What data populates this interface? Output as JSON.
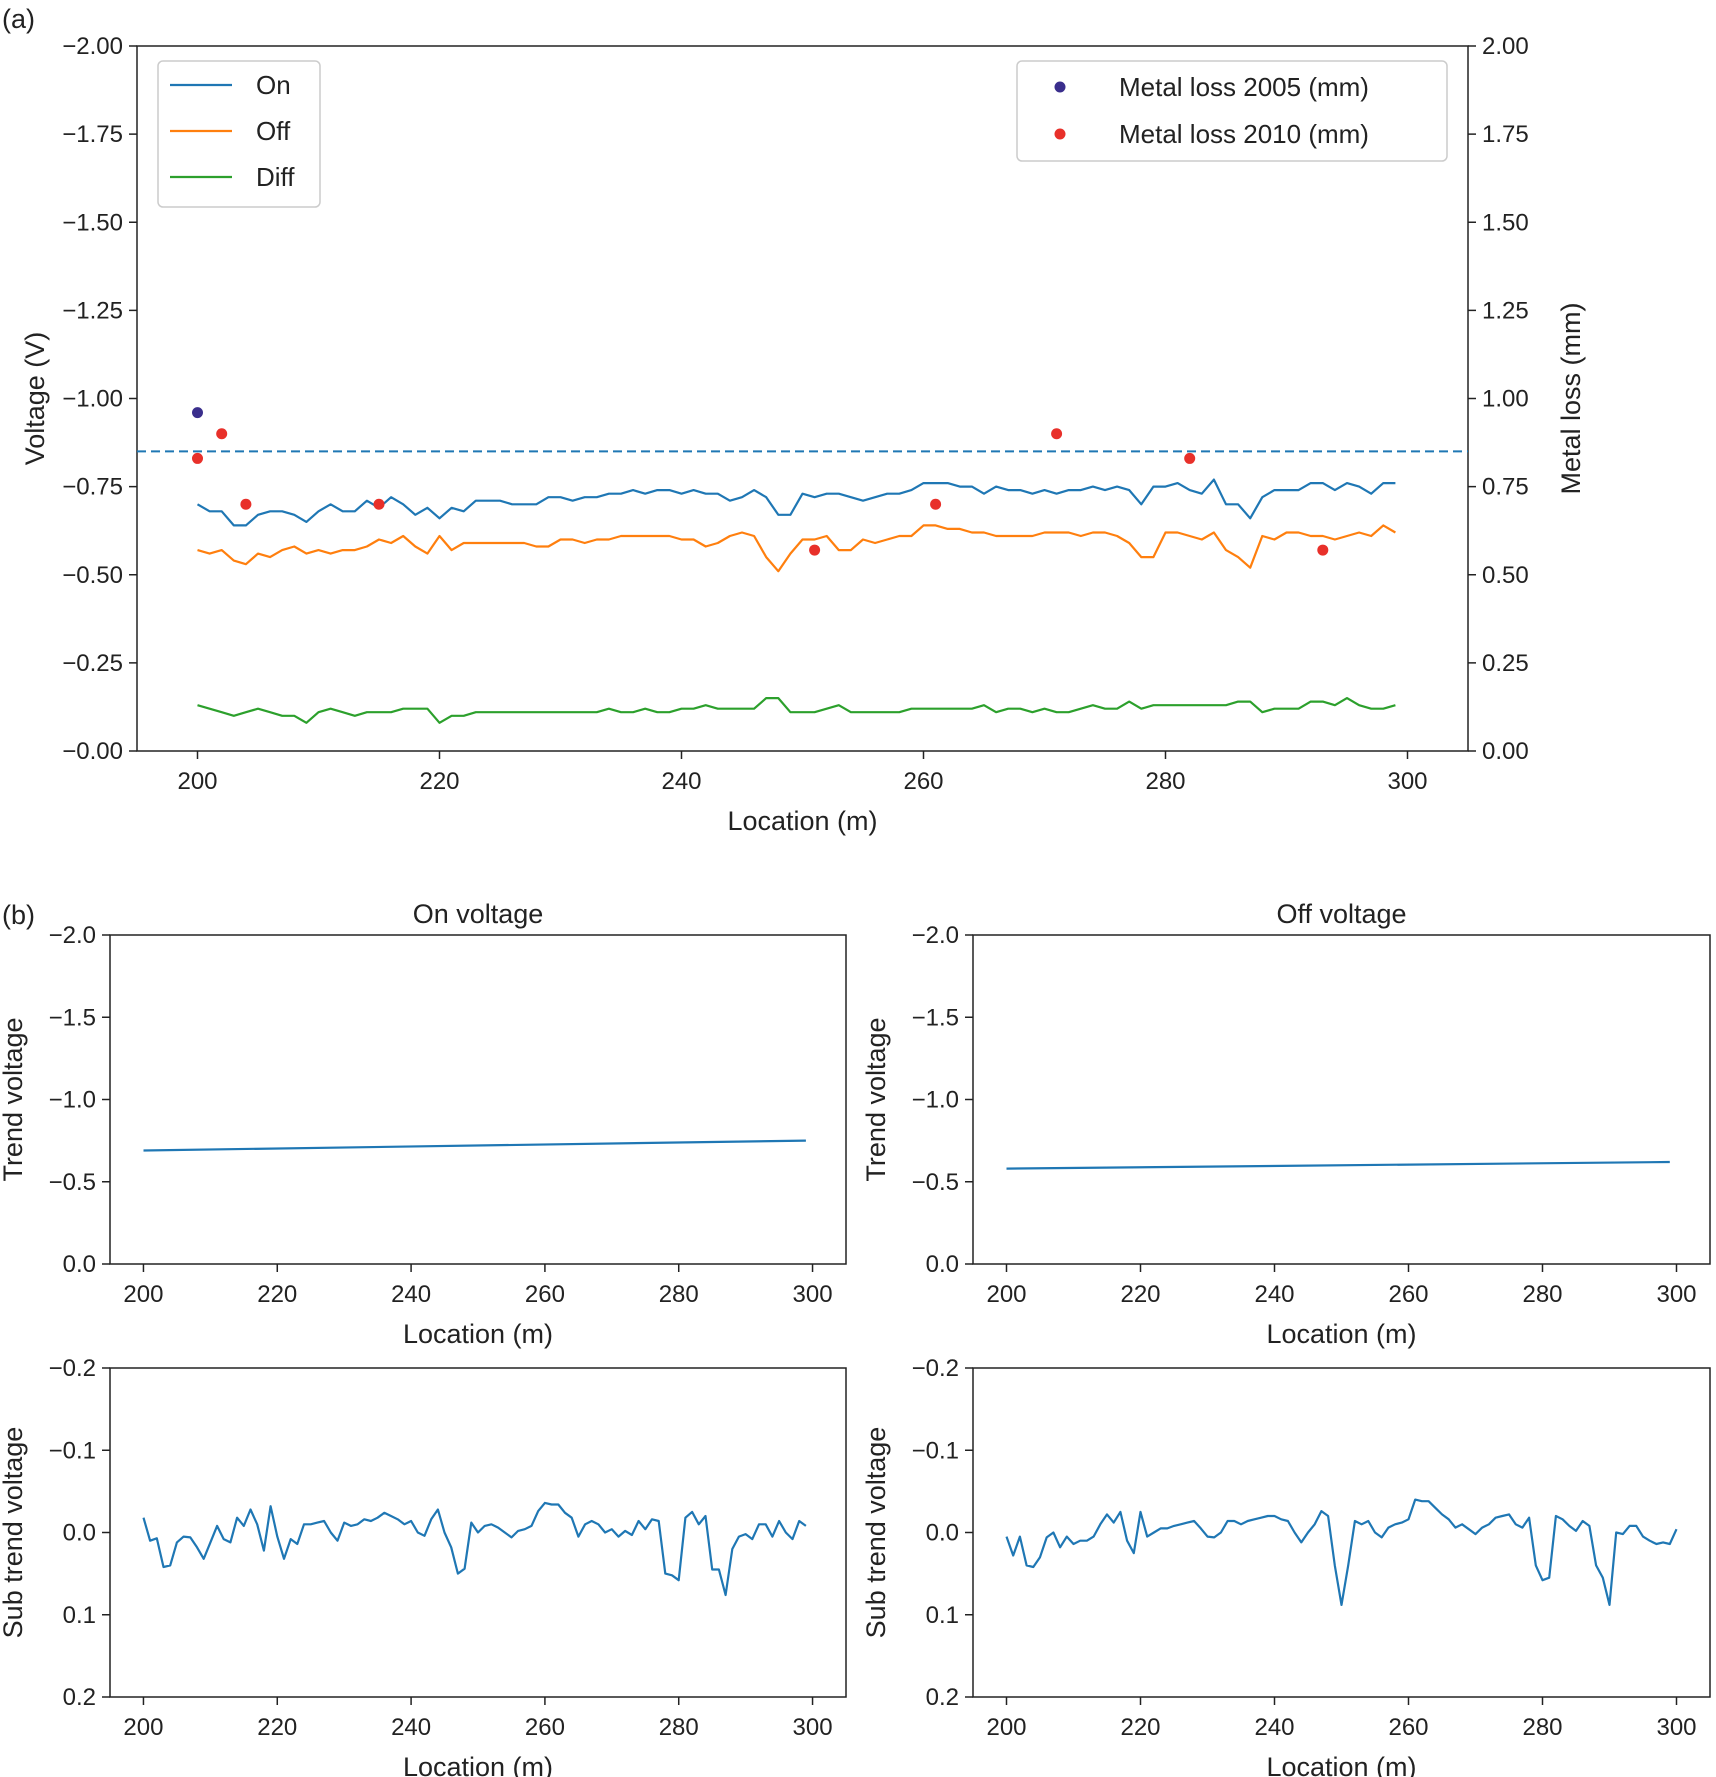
{
  "chart_data": [
    {
      "id": "a",
      "panel_label": "(a)",
      "type": "line",
      "title": "",
      "xlabel": "Location (m)",
      "ylabel": "Voltage (V)",
      "ylabel_right": "Metal loss (mm)",
      "xlim": [
        195,
        305
      ],
      "ylim": [
        -2.0,
        0.0
      ],
      "ylim_right": [
        2.0,
        0.0
      ],
      "x_ticks": [
        200,
        220,
        240,
        260,
        280,
        300
      ],
      "y_ticks": [
        -2.0,
        -1.75,
        -1.5,
        -1.25,
        -1.0,
        -0.75,
        -0.5,
        -0.25,
        0.0
      ],
      "y_tick_labels": [
        "−2.00",
        "−1.75",
        "−1.50",
        "−1.25",
        "−1.00",
        "−0.75",
        "−0.50",
        "−0.25",
        "−0.00"
      ],
      "y_ticks_right": [
        2.0,
        1.75,
        1.5,
        1.25,
        1.0,
        0.75,
        0.5,
        0.25,
        0.0
      ],
      "y_tick_labels_right": [
        "2.00",
        "1.75",
        "1.50",
        "1.25",
        "1.00",
        "0.75",
        "0.50",
        "0.25",
        "0.00"
      ],
      "threshold_line": -0.85,
      "x_start": 200,
      "x_step": 1,
      "series": [
        {
          "name": "On",
          "color": "#1f77b4",
          "values": [
            -0.7,
            -0.68,
            -0.68,
            -0.64,
            -0.64,
            -0.67,
            -0.68,
            -0.68,
            -0.67,
            -0.65,
            -0.68,
            -0.7,
            -0.68,
            -0.68,
            -0.71,
            -0.69,
            -0.72,
            -0.7,
            -0.67,
            -0.69,
            -0.66,
            -0.69,
            -0.68,
            -0.71,
            -0.71,
            -0.71,
            -0.7,
            -0.7,
            -0.7,
            -0.72,
            -0.72,
            -0.71,
            -0.72,
            -0.72,
            -0.73,
            -0.73,
            -0.74,
            -0.73,
            -0.74,
            -0.74,
            -0.73,
            -0.74,
            -0.73,
            -0.73,
            -0.71,
            -0.72,
            -0.74,
            -0.72,
            -0.67,
            -0.67,
            -0.73,
            -0.72,
            -0.73,
            -0.73,
            -0.72,
            -0.71,
            -0.72,
            -0.73,
            -0.73,
            -0.74,
            -0.76,
            -0.76,
            -0.76,
            -0.75,
            -0.75,
            -0.73,
            -0.75,
            -0.74,
            -0.74,
            -0.73,
            -0.74,
            -0.73,
            -0.74,
            -0.74,
            -0.75,
            -0.74,
            -0.75,
            -0.74,
            -0.7,
            -0.75,
            -0.75,
            -0.76,
            -0.74,
            -0.73,
            -0.77,
            -0.7,
            -0.7,
            -0.66,
            -0.72,
            -0.74,
            -0.74,
            -0.74,
            -0.76,
            -0.76,
            -0.74,
            -0.76,
            -0.75,
            -0.73,
            -0.76,
            -0.76
          ]
        },
        {
          "name": "Off",
          "color": "#ff7f0e",
          "values": [
            -0.57,
            -0.56,
            -0.57,
            -0.54,
            -0.53,
            -0.56,
            -0.55,
            -0.57,
            -0.58,
            -0.56,
            -0.57,
            -0.56,
            -0.57,
            -0.57,
            -0.58,
            -0.6,
            -0.59,
            -0.61,
            -0.58,
            -0.56,
            -0.61,
            -0.57,
            -0.59,
            -0.59,
            -0.59,
            -0.59,
            -0.59,
            -0.59,
            -0.58,
            -0.58,
            -0.6,
            -0.6,
            -0.59,
            -0.6,
            -0.6,
            -0.61,
            -0.61,
            -0.61,
            -0.61,
            -0.61,
            -0.6,
            -0.6,
            -0.58,
            -0.59,
            -0.61,
            -0.62,
            -0.61,
            -0.55,
            -0.51,
            -0.56,
            -0.6,
            -0.6,
            -0.61,
            -0.57,
            -0.57,
            -0.6,
            -0.59,
            -0.6,
            -0.61,
            -0.61,
            -0.64,
            -0.64,
            -0.63,
            -0.63,
            -0.62,
            -0.62,
            -0.61,
            -0.61,
            -0.61,
            -0.61,
            -0.62,
            -0.62,
            -0.62,
            -0.61,
            -0.62,
            -0.62,
            -0.61,
            -0.59,
            -0.55,
            -0.55,
            -0.62,
            -0.62,
            -0.61,
            -0.6,
            -0.62,
            -0.57,
            -0.55,
            -0.52,
            -0.61,
            -0.6,
            -0.62,
            -0.62,
            -0.61,
            -0.61,
            -0.6,
            -0.61,
            -0.62,
            -0.61,
            -0.64,
            -0.62
          ]
        },
        {
          "name": "Diff",
          "color": "#2ca02c",
          "values": [
            -0.13,
            -0.12,
            -0.11,
            -0.1,
            -0.11,
            -0.12,
            -0.11,
            -0.1,
            -0.1,
            -0.08,
            -0.11,
            -0.12,
            -0.11,
            -0.1,
            -0.11,
            -0.11,
            -0.11,
            -0.12,
            -0.12,
            -0.12,
            -0.08,
            -0.1,
            -0.1,
            -0.11,
            -0.11,
            -0.11,
            -0.11,
            -0.11,
            -0.11,
            -0.11,
            -0.11,
            -0.11,
            -0.11,
            -0.11,
            -0.12,
            -0.11,
            -0.11,
            -0.12,
            -0.11,
            -0.11,
            -0.12,
            -0.12,
            -0.13,
            -0.12,
            -0.12,
            -0.12,
            -0.12,
            -0.15,
            -0.15,
            -0.11,
            -0.11,
            -0.11,
            -0.12,
            -0.13,
            -0.11,
            -0.11,
            -0.11,
            -0.11,
            -0.11,
            -0.12,
            -0.12,
            -0.12,
            -0.12,
            -0.12,
            -0.12,
            -0.13,
            -0.11,
            -0.12,
            -0.12,
            -0.11,
            -0.12,
            -0.11,
            -0.11,
            -0.12,
            -0.13,
            -0.12,
            -0.12,
            -0.14,
            -0.12,
            -0.13,
            -0.13,
            -0.13,
            -0.13,
            -0.13,
            -0.13,
            -0.13,
            -0.14,
            -0.14,
            -0.11,
            -0.12,
            -0.12,
            -0.12,
            -0.14,
            -0.14,
            -0.13,
            -0.15,
            -0.13,
            -0.12,
            -0.12,
            -0.13
          ]
        }
      ],
      "scatter_series": [
        {
          "name": "Metal loss 2005 (mm)",
          "color": "#3a2e8c",
          "points": [
            [
              200,
              0.96
            ]
          ]
        },
        {
          "name": "Metal loss 2010 (mm)",
          "color": "#e8302a",
          "points": [
            [
              200,
              0.83
            ],
            [
              202,
              0.9
            ],
            [
              204,
              0.7
            ],
            [
              215,
              0.7
            ],
            [
              251,
              0.57
            ],
            [
              261,
              0.7
            ],
            [
              271,
              0.9
            ],
            [
              282,
              0.83
            ],
            [
              293,
              0.57
            ]
          ]
        }
      ],
      "legend_left": [
        "On",
        "Off",
        "Diff"
      ],
      "legend_right": [
        "Metal loss 2005 (mm)",
        "Metal loss 2010 (mm)"
      ],
      "legend_placement": [
        "upper-left",
        "upper-right"
      ]
    },
    {
      "id": "b1",
      "panel_label": "(b)",
      "type": "line",
      "title": "On voltage",
      "xlabel": "Location (m)",
      "ylabel": "Trend voltage",
      "xlim": [
        195,
        305
      ],
      "ylim": [
        -2.0,
        0.0
      ],
      "x_ticks": [
        200,
        220,
        240,
        260,
        280,
        300
      ],
      "y_ticks": [
        -2.0,
        -1.5,
        -1.0,
        -0.5,
        0.0
      ],
      "y_tick_labels": [
        "−2.0",
        "−1.5",
        "−1.0",
        "−0.5",
        "0.0"
      ],
      "series": [
        {
          "name": "On trend",
          "color": "#1f77b4",
          "x": [
            200,
            299
          ],
          "values": [
            -0.69,
            -0.75
          ]
        }
      ]
    },
    {
      "id": "b2",
      "panel_label": "",
      "type": "line",
      "title": "Off voltage",
      "xlabel": "Location (m)",
      "ylabel": "Trend voltage",
      "xlim": [
        195,
        305
      ],
      "ylim": [
        -2.0,
        0.0
      ],
      "x_ticks": [
        200,
        220,
        240,
        260,
        280,
        300
      ],
      "y_ticks": [
        -2.0,
        -1.5,
        -1.0,
        -0.5,
        0.0
      ],
      "y_tick_labels": [
        "−2.0",
        "−1.5",
        "−1.0",
        "−0.5",
        "0.0"
      ],
      "series": [
        {
          "name": "Off trend",
          "color": "#1f77b4",
          "x": [
            200,
            299
          ],
          "values": [
            -0.58,
            -0.62
          ]
        }
      ]
    },
    {
      "id": "b3",
      "panel_label": "",
      "type": "line",
      "title": "",
      "xlabel": "Location (m)",
      "ylabel": "Sub trend voltage",
      "xlim": [
        195,
        305
      ],
      "ylim": [
        -0.2,
        0.2
      ],
      "x_ticks": [
        200,
        220,
        240,
        260,
        280,
        300
      ],
      "y_ticks": [
        -0.2,
        -0.1,
        0.0,
        0.1,
        0.2
      ],
      "y_tick_labels": [
        "−0.2",
        "−0.1",
        "0.0",
        "0.1",
        "0.2"
      ],
      "series": [
        {
          "name": "On sub trend",
          "color": "#1f77b4",
          "x_start": 200,
          "x_step": 1,
          "values": [
            -0.018,
            0.01,
            0.007,
            0.042,
            0.04,
            0.012,
            0.005,
            0.006,
            0.018,
            0.032,
            0.012,
            -0.008,
            0.008,
            0.012,
            -0.018,
            -0.008,
            -0.028,
            -0.01,
            0.022,
            -0.032,
            0.005,
            0.032,
            0.008,
            0.014,
            -0.01,
            -0.01,
            -0.012,
            -0.014,
            0.0,
            0.01,
            -0.012,
            -0.008,
            -0.01,
            -0.016,
            -0.014,
            -0.018,
            -0.024,
            -0.02,
            -0.016,
            -0.01,
            -0.014,
            0.0,
            0.004,
            -0.016,
            -0.028,
            0.0,
            0.018,
            0.05,
            0.044,
            -0.012,
            0.0,
            -0.008,
            -0.01,
            -0.006,
            0.0,
            0.006,
            -0.002,
            -0.004,
            -0.008,
            -0.026,
            -0.036,
            -0.034,
            -0.034,
            -0.024,
            -0.018,
            0.005,
            -0.01,
            -0.014,
            -0.01,
            0.0,
            -0.004,
            0.005,
            -0.002,
            0.003,
            -0.014,
            -0.004,
            -0.016,
            -0.014,
            0.05,
            0.052,
            0.058,
            -0.018,
            -0.025,
            -0.01,
            -0.02,
            0.045,
            0.045,
            0.076,
            0.02,
            0.005,
            0.002,
            0.008,
            -0.01,
            -0.01,
            0.005,
            -0.014,
            0.0,
            0.008,
            -0.014,
            -0.008
          ]
        }
      ]
    },
    {
      "id": "b4",
      "panel_label": "",
      "type": "line",
      "title": "",
      "xlabel": "Location (m)",
      "ylabel": "Sub trend voltage",
      "xlim": [
        195,
        305
      ],
      "ylim": [
        -0.2,
        0.2
      ],
      "x_ticks": [
        200,
        220,
        240,
        260,
        280,
        300
      ],
      "y_ticks": [
        -0.2,
        -0.1,
        0.0,
        0.1,
        0.2
      ],
      "y_tick_labels": [
        "−0.2",
        "−0.1",
        "0.0",
        "0.1",
        "0.2"
      ],
      "series": [
        {
          "name": "Off sub trend",
          "color": "#1f77b4",
          "x_start": 200,
          "x_step": 1,
          "values": [
            0.005,
            0.028,
            0.005,
            0.04,
            0.042,
            0.03,
            0.006,
            0.0,
            0.018,
            0.005,
            0.014,
            0.01,
            0.01,
            0.005,
            -0.01,
            -0.022,
            -0.012,
            -0.025,
            0.01,
            0.025,
            -0.025,
            0.005,
            0.0,
            -0.005,
            -0.005,
            -0.008,
            -0.01,
            -0.012,
            -0.014,
            -0.005,
            0.005,
            0.006,
            0.0,
            -0.014,
            -0.014,
            -0.01,
            -0.014,
            -0.016,
            -0.018,
            -0.02,
            -0.02,
            -0.016,
            -0.014,
            0.0,
            0.012,
            0.0,
            -0.01,
            -0.026,
            -0.02,
            0.04,
            0.088,
            0.04,
            -0.014,
            -0.01,
            -0.014,
            0.0,
            0.006,
            -0.006,
            -0.01,
            -0.012,
            -0.016,
            -0.04,
            -0.038,
            -0.038,
            -0.03,
            -0.022,
            -0.016,
            -0.006,
            -0.01,
            -0.004,
            0.002,
            -0.006,
            -0.01,
            -0.018,
            -0.02,
            -0.022,
            -0.01,
            -0.006,
            -0.018,
            0.04,
            0.058,
            0.055,
            -0.02,
            -0.016,
            -0.008,
            -0.002,
            -0.014,
            -0.008,
            0.04,
            0.055,
            0.088,
            0.0,
            0.002,
            -0.008,
            -0.008,
            0.005,
            0.01,
            0.014,
            0.012,
            0.014,
            -0.004
          ]
        }
      ]
    }
  ]
}
